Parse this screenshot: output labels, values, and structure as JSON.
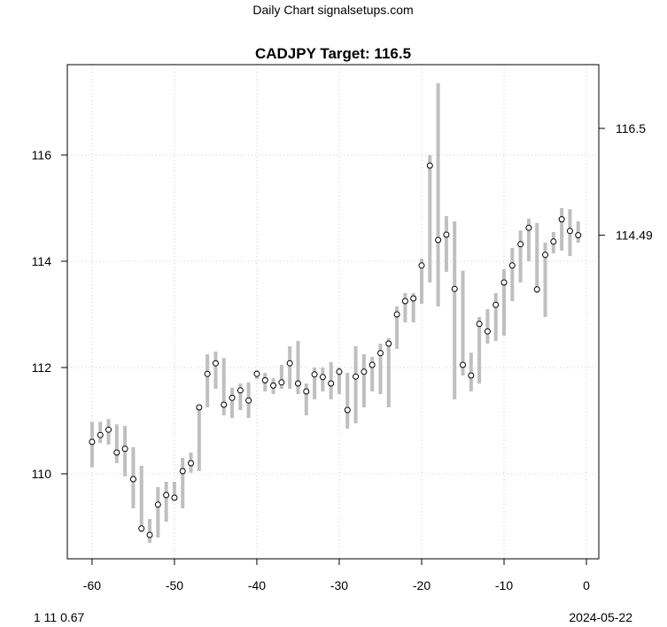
{
  "chart_data": {
    "type": "scatter",
    "header": "Daily Chart signalsetups.com",
    "title": "CADJPY Target: 116.5",
    "footer_left": "1 11 0.67",
    "footer_right": "2024-05-22",
    "xlim": [
      -63,
      1.5
    ],
    "ylim": [
      108.4,
      117.7
    ],
    "x_ticks": [
      -60,
      -50,
      -40,
      -30,
      -20,
      -10,
      0
    ],
    "x_tick_labels": [
      "-60",
      "-50",
      "-40",
      "-30",
      "-20",
      "-10",
      "0"
    ],
    "y_ticks": [
      110,
      112,
      114,
      116
    ],
    "y_tick_labels": [
      "110",
      "112",
      "114",
      "116"
    ],
    "right_axis_ticks": [
      114.49,
      116.5
    ],
    "right_axis_labels": [
      "114.49",
      "116.5"
    ],
    "grid": true,
    "colors": {
      "range_bar": "#bfbfbf",
      "point_fill": "#ffffff",
      "point_stroke": "#000000",
      "grid": "#cccccc"
    },
    "x": [
      -60,
      -59,
      -58,
      -57,
      -56,
      -55,
      -54,
      -53,
      -52,
      -51,
      -50,
      -49,
      -48,
      -47,
      -46,
      -45,
      -44,
      -43,
      -42,
      -41,
      -40,
      -39,
      -38,
      -37,
      -36,
      -35,
      -34,
      -33,
      -32,
      -31,
      -30,
      -29,
      -28,
      -27,
      -26,
      -25,
      -24,
      -23,
      -22,
      -21,
      -20,
      -19,
      -18,
      -17,
      -16,
      -15,
      -14,
      -13,
      -12,
      -11,
      -10,
      -9,
      -8,
      -7,
      -6,
      -5,
      -4,
      -3,
      -2,
      -1
    ],
    "series": [
      {
        "values": [
          110.6,
          110.73,
          110.83,
          110.4,
          110.47,
          109.9,
          108.97,
          108.85,
          109.42,
          109.6,
          109.55,
          110.05,
          110.2,
          111.25,
          111.88,
          112.08,
          111.3,
          111.43,
          111.57,
          111.38,
          111.88,
          111.76,
          111.66,
          111.72,
          112.08,
          111.7,
          111.55,
          111.87,
          111.82,
          111.7,
          111.92,
          111.2,
          111.83,
          111.92,
          112.05,
          112.27,
          112.45,
          113.0,
          113.25,
          113.3,
          113.92,
          115.8,
          114.4,
          114.5,
          113.48,
          112.05,
          111.85,
          112.82,
          112.68,
          113.18,
          113.6,
          113.92,
          114.32,
          114.63,
          113.47,
          114.12,
          114.37,
          114.79,
          114.57,
          114.49
        ],
        "low": [
          110.12,
          110.58,
          110.55,
          110.2,
          109.95,
          109.35,
          108.9,
          108.7,
          108.8,
          109.1,
          109.5,
          109.35,
          110.02,
          110.05,
          111.25,
          111.6,
          111.1,
          111.05,
          111.2,
          111.05,
          111.78,
          111.55,
          111.5,
          111.6,
          111.6,
          111.5,
          111.1,
          111.4,
          111.55,
          111.4,
          111.5,
          110.85,
          110.95,
          111.25,
          111.55,
          111.5,
          111.25,
          112.35,
          112.85,
          112.85,
          113.2,
          113.6,
          113.15,
          113.8,
          111.4,
          111.85,
          111.55,
          111.7,
          112.45,
          112.5,
          112.6,
          113.25,
          113.6,
          114.0,
          113.4,
          112.95,
          114.15,
          114.2,
          114.1,
          114.35
        ],
        "high": [
          110.98,
          110.98,
          111.03,
          110.93,
          110.9,
          110.5,
          110.15,
          109.15,
          109.75,
          109.85,
          109.85,
          110.3,
          110.4,
          111.3,
          112.25,
          112.3,
          112.18,
          111.62,
          111.7,
          111.72,
          111.95,
          111.9,
          111.8,
          112.05,
          112.4,
          112.5,
          111.7,
          112.0,
          112.0,
          112.1,
          112.0,
          111.9,
          112.4,
          112.25,
          112.2,
          112.45,
          112.55,
          113.15,
          113.4,
          113.4,
          114.05,
          116.0,
          117.35,
          114.85,
          114.75,
          113.82,
          112.28,
          112.95,
          113.1,
          113.4,
          113.85,
          114.25,
          114.58,
          114.8,
          114.72,
          114.35,
          114.55,
          115.0,
          114.98,
          114.75
        ]
      }
    ]
  }
}
